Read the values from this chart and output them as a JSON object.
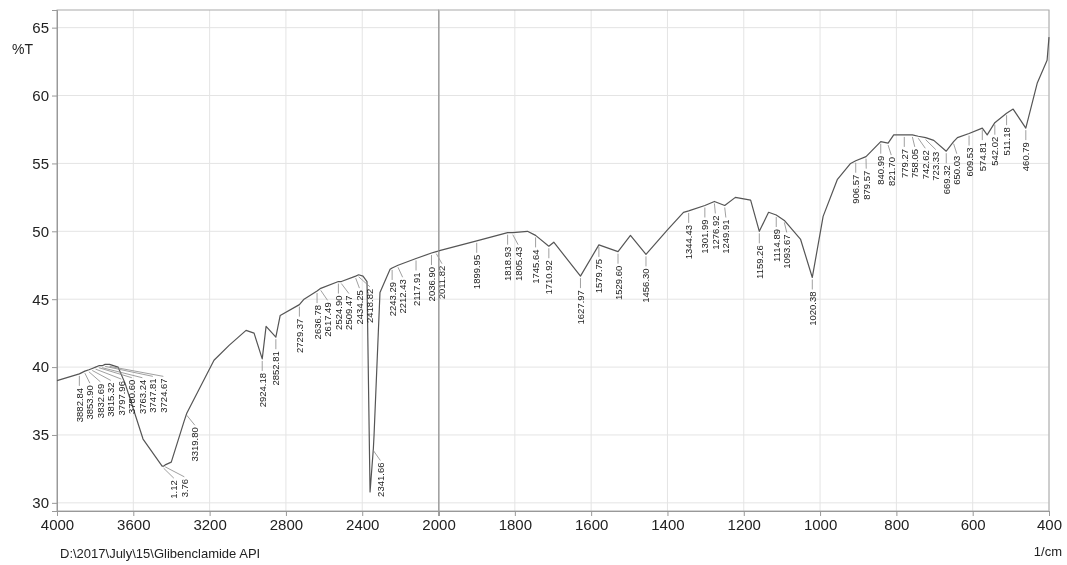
{
  "chart_data": [
    {
      "type": "line",
      "ylabel": "%T",
      "xlim": [
        4000,
        2000
      ],
      "ylim": [
        29.4,
        66.3
      ],
      "xticks": [
        4000,
        3600,
        3200,
        2800,
        2400,
        2000
      ],
      "yticks": [
        30,
        35,
        40,
        45,
        50,
        55,
        60,
        65
      ],
      "grid": true,
      "series": [
        {
          "color": "#555555",
          "x": [
            4000,
            3882.84,
            3853.9,
            3832.69,
            3815.32,
            3797.96,
            3780.6,
            3763.24,
            3747.81,
            3724.67,
            3680,
            3643,
            3549,
            3449,
            3441,
            3433,
            3401,
            3334,
            3319.8,
            3177,
            3098,
            3009,
            2967,
            2924.18,
            2904,
            2852.81,
            2830,
            2729.37,
            2705,
            2636.78,
            2617.49,
            2524.9,
            2509.47,
            2434.25,
            2418.82,
            2396,
            2375,
            2359,
            2341.66,
            2338,
            2307,
            2254,
            2243.29,
            2212.43,
            2117.91,
            2036.9,
            2011.82,
            2000
          ],
          "values": [
            39.0,
            39.5,
            39.7,
            39.8,
            39.9,
            40.0,
            40.1,
            40.1,
            40.2,
            40.2,
            40.0,
            38.8,
            34.7,
            32.7,
            32.7,
            32.8,
            33.0,
            36.0,
            36.6,
            40.5,
            41.6,
            42.7,
            42.5,
            40.6,
            43.0,
            42.2,
            43.8,
            44.6,
            45.0,
            45.6,
            45.8,
            46.3,
            46.3,
            46.7,
            46.8,
            46.7,
            46.3,
            30.8,
            34.0,
            35.0,
            45.5,
            47.2,
            47.3,
            47.5,
            48.0,
            48.4,
            48.5,
            48.55
          ]
        }
      ],
      "annotations": [
        {
          "text": "3882.84",
          "x": 3882.84,
          "y": 39.5
        },
        {
          "text": "3853.90",
          "x": 3853.9,
          "y": 39.7
        },
        {
          "text": "3832.69",
          "x": 3832.69,
          "y": 39.8
        },
        {
          "text": "3815.32",
          "x": 3815.32,
          "y": 39.9
        },
        {
          "text": "3797.96",
          "x": 3797.96,
          "y": 40.0
        },
        {
          "text": "3780.60",
          "x": 3780.6,
          "y": 40.1
        },
        {
          "text": "3763.24",
          "x": 3763.24,
          "y": 40.1
        },
        {
          "text": "3747.81",
          "x": 3747.81,
          "y": 40.2
        },
        {
          "text": "3724.67",
          "x": 3724.67,
          "y": 40.2
        },
        {
          "text": "1.12",
          "x": 3441,
          "y": 32.7
        },
        {
          "text": "3.76",
          "x": 3433,
          "y": 32.8
        },
        {
          "text": "3319.80",
          "x": 3319.8,
          "y": 36.6
        },
        {
          "text": "2924.18",
          "x": 2924.18,
          "y": 40.6
        },
        {
          "text": "2852.81",
          "x": 2852.81,
          "y": 42.2
        },
        {
          "text": "2729.37",
          "x": 2729.37,
          "y": 44.6
        },
        {
          "text": "2636.78",
          "x": 2636.78,
          "y": 45.6
        },
        {
          "text": "2617.49",
          "x": 2617.49,
          "y": 45.8
        },
        {
          "text": "2524.90",
          "x": 2524.9,
          "y": 46.3
        },
        {
          "text": "2509.47",
          "x": 2509.47,
          "y": 46.3
        },
        {
          "text": "2434.25",
          "x": 2434.25,
          "y": 46.7
        },
        {
          "text": "2418.82",
          "x": 2418.82,
          "y": 46.8
        },
        {
          "text": "2341.66",
          "x": 2341.66,
          "y": 34.0
        },
        {
          "text": "2243.29",
          "x": 2243.29,
          "y": 47.3
        },
        {
          "text": "2212.43",
          "x": 2212.43,
          "y": 47.5
        },
        {
          "text": "2117.91",
          "x": 2117.91,
          "y": 48.0
        },
        {
          "text": "2036.90",
          "x": 2036.9,
          "y": 48.4
        },
        {
          "text": "2011.82",
          "x": 2011.82,
          "y": 48.5
        },
        "D:\\2017\\July\\15\\Glibenclamide API"
      ]
    },
    {
      "type": "line",
      "xlabel": "1/cm",
      "xlim": [
        2000,
        400
      ],
      "ylim": [
        29.4,
        66.3
      ],
      "xticks": [
        {
          "value": 2000,
          "label": null
        },
        1800,
        1600,
        1400,
        1200,
        1000,
        800,
        600,
        400
      ],
      "yticks": [
        30,
        35,
        40,
        45,
        50,
        55,
        60,
        65
      ],
      "tick_labels": "x",
      "grid": true,
      "series": [
        {
          "color": "#555555",
          "x": [
            2000,
            1995,
            1899.95,
            1818.93,
            1805.43,
            1767,
            1745.64,
            1710.92,
            1698,
            1627.97,
            1579.75,
            1529.6,
            1497,
            1456.3,
            1400,
            1358,
            1344.43,
            1301.99,
            1276.92,
            1249.91,
            1222,
            1182,
            1159.26,
            1135,
            1114.89,
            1093.67,
            1051,
            1020.38,
            992,
            955,
            920,
            906.57,
            879.57,
            840.99,
            821.7,
            807,
            779.27,
            758.05,
            742.62,
            723.33,
            702,
            669.32,
            650.03,
            640,
            609.53,
            574.81,
            562,
            542.02,
            511.18,
            494,
            460.79,
            431,
            405,
            400
          ],
          "values": [
            48.55,
            48.6,
            49.3,
            49.9,
            49.9,
            50.0,
            49.7,
            48.9,
            49.2,
            46.7,
            49.0,
            48.5,
            49.7,
            48.3,
            50.1,
            51.4,
            51.5,
            51.9,
            52.2,
            51.9,
            52.5,
            52.3,
            50.0,
            51.4,
            51.2,
            50.8,
            49.4,
            46.6,
            51.1,
            53.8,
            55.0,
            55.2,
            55.5,
            56.6,
            56.5,
            57.1,
            57.1,
            57.1,
            57.0,
            56.9,
            56.7,
            55.9,
            56.6,
            56.9,
            57.2,
            57.6,
            57.1,
            58.0,
            58.7,
            59.0,
            57.6,
            60.9,
            62.6,
            64.3
          ]
        }
      ],
      "annotations": [
        {
          "text": "1899.95",
          "x": 1899.95,
          "y": 49.3
        },
        {
          "text": "1818.93",
          "x": 1818.93,
          "y": 49.9
        },
        {
          "text": "1805.43",
          "x": 1805.43,
          "y": 49.9
        },
        {
          "text": "1745.64",
          "x": 1745.64,
          "y": 49.7
        },
        {
          "text": "1710.92",
          "x": 1710.92,
          "y": 48.9
        },
        {
          "text": "1627.97",
          "x": 1627.97,
          "y": 46.7
        },
        {
          "text": "1579.75",
          "x": 1579.75,
          "y": 49.0
        },
        {
          "text": "1529.60",
          "x": 1529.6,
          "y": 48.5
        },
        {
          "text": "1456.30",
          "x": 1456.3,
          "y": 48.3
        },
        {
          "text": "1344.43",
          "x": 1344.43,
          "y": 51.5
        },
        {
          "text": "1301.99",
          "x": 1301.99,
          "y": 51.9
        },
        {
          "text": "1276.92",
          "x": 1276.92,
          "y": 52.2
        },
        {
          "text": "1249.91",
          "x": 1249.91,
          "y": 51.9
        },
        {
          "text": "1159.26",
          "x": 1159.26,
          "y": 50.0
        },
        {
          "text": "1114.89",
          "x": 1114.89,
          "y": 51.2
        },
        {
          "text": "1093.67",
          "x": 1093.67,
          "y": 50.8
        },
        {
          "text": "1020.38",
          "x": 1020.38,
          "y": 46.6
        },
        {
          "text": "906.57",
          "x": 906.57,
          "y": 55.2
        },
        {
          "text": "879.57",
          "x": 879.57,
          "y": 55.5
        },
        {
          "text": "840.99",
          "x": 840.99,
          "y": 56.6
        },
        {
          "text": "821.70",
          "x": 821.7,
          "y": 56.5
        },
        {
          "text": "779.27",
          "x": 779.27,
          "y": 57.1
        },
        {
          "text": "758.05",
          "x": 758.05,
          "y": 57.1
        },
        {
          "text": "742.62",
          "x": 742.62,
          "y": 57.0
        },
        {
          "text": "723.33",
          "x": 723.33,
          "y": 56.9
        },
        {
          "text": "669.32",
          "x": 669.32,
          "y": 55.9
        },
        {
          "text": "650.03",
          "x": 650.03,
          "y": 56.6
        },
        {
          "text": "609.53",
          "x": 609.53,
          "y": 57.2
        },
        {
          "text": "574.81",
          "x": 574.81,
          "y": 57.6
        },
        {
          "text": "542.02",
          "x": 542.02,
          "y": 58.0
        },
        {
          "text": "511.18",
          "x": 511.18,
          "y": 58.7
        },
        {
          "text": "460.79",
          "x": 460.79,
          "y": 57.6
        }
      ]
    }
  ]
}
